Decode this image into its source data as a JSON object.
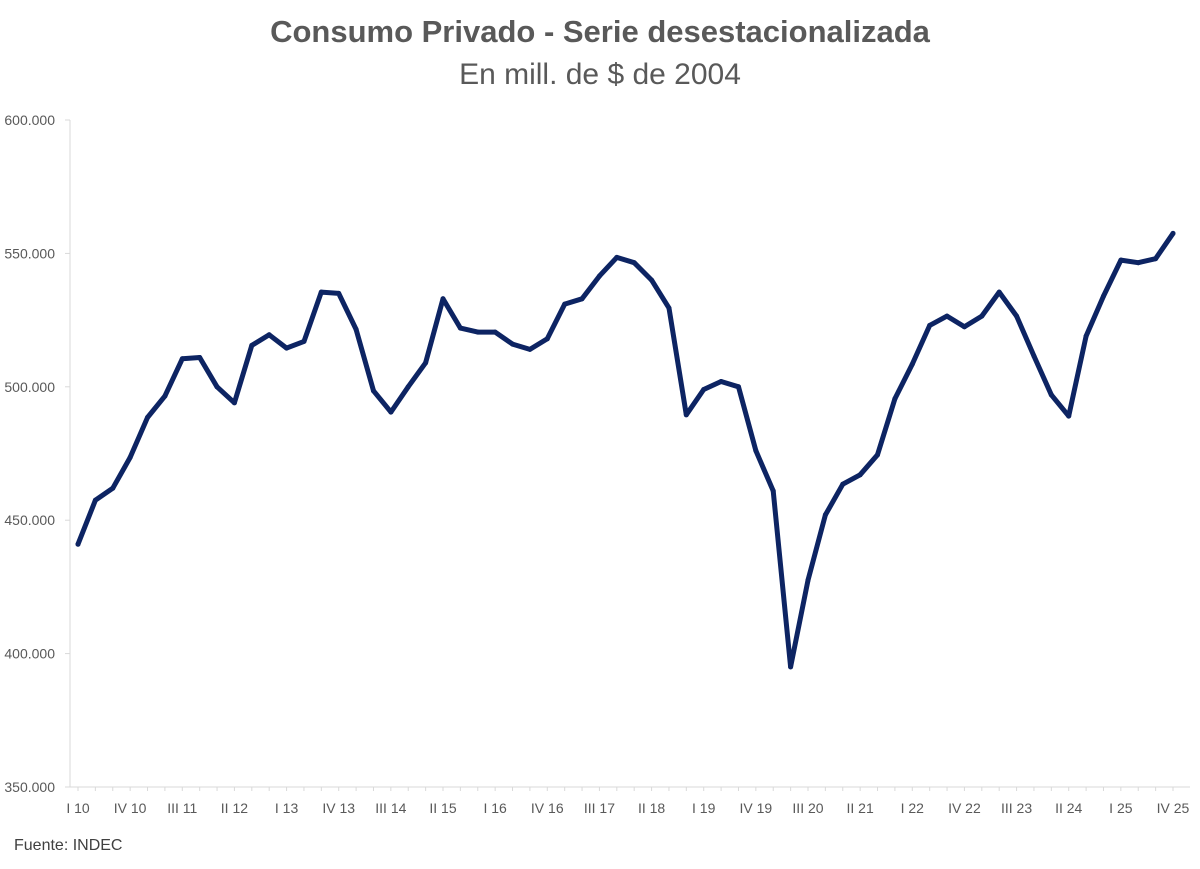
{
  "chart_data": {
    "type": "line",
    "title": "Consumo Privado - Serie desestacionalizada",
    "subtitle": "En mill. de $ de 2004",
    "xlabel": "",
    "ylabel": "",
    "ylim": [
      350000,
      600000
    ],
    "yticks": [
      350000,
      400000,
      450000,
      500000,
      550000,
      600000
    ],
    "ytick_labels": [
      "350.000",
      "400.000",
      "450.000",
      "500.000",
      "550.000",
      "600.000"
    ],
    "grid": false,
    "x": [
      "I 10",
      "II 10",
      "III 10",
      "IV 10",
      "I 11",
      "II 11",
      "III 11",
      "IV 11",
      "I 12",
      "II 12",
      "III 12",
      "IV 12",
      "I 13",
      "II 13",
      "III 13",
      "IV 13",
      "I 14",
      "II 14",
      "III 14",
      "IV 14",
      "I 15",
      "II 15",
      "III 15",
      "IV 15",
      "I 16",
      "II 16",
      "III 16",
      "IV 16",
      "I 17",
      "II 17",
      "III 17",
      "IV 17",
      "I 18",
      "II 18",
      "III 18",
      "IV 18",
      "I 19",
      "II 19",
      "III 19",
      "IV 19",
      "I 20",
      "II 20",
      "III 20",
      "IV 20",
      "I 21",
      "II 21",
      "III 21",
      "IV 21",
      "I 22",
      "II 22",
      "III 22",
      "IV 22",
      "I 23",
      "II 23",
      "III 23",
      "IV 23",
      "I 24",
      "II 24",
      "III 24",
      "IV 24",
      "I 25",
      "II 25",
      "III 25",
      "IV 25"
    ],
    "x_tick_labels": [
      "I 10",
      "IV 10",
      "III 11",
      "II 12",
      "I 13",
      "IV 13",
      "III 14",
      "II 15",
      "I 16",
      "IV 16",
      "III 17",
      "II 18",
      "I 19",
      "IV 19",
      "III 20",
      "II 21",
      "I 22",
      "IV 22",
      "III 23",
      "II 24",
      "I 25",
      "IV 25"
    ],
    "series": [
      {
        "name": "Consumo Privado",
        "color": "#0d2463",
        "values": [
          441000,
          457500,
          462000,
          473500,
          488500,
          496500,
          510500,
          511000,
          500000,
          494000,
          515500,
          519500,
          514500,
          517000,
          535500,
          535000,
          521500,
          498500,
          490500,
          500000,
          509000,
          533000,
          522000,
          520500,
          520500,
          516000,
          514000,
          518000,
          531000,
          533000,
          541500,
          548500,
          546500,
          540000,
          529500,
          489500,
          499000,
          502000,
          500000,
          476000,
          461000,
          395000,
          427500,
          452000,
          463500,
          467000,
          474500,
          495500,
          508500,
          523000,
          526500,
          522500,
          526500,
          535500,
          526500,
          511500,
          497000,
          489000,
          519000,
          534000,
          547500,
          546500,
          548000,
          557500
        ]
      }
    ]
  },
  "footer": {
    "source": "Fuente: INDEC"
  }
}
